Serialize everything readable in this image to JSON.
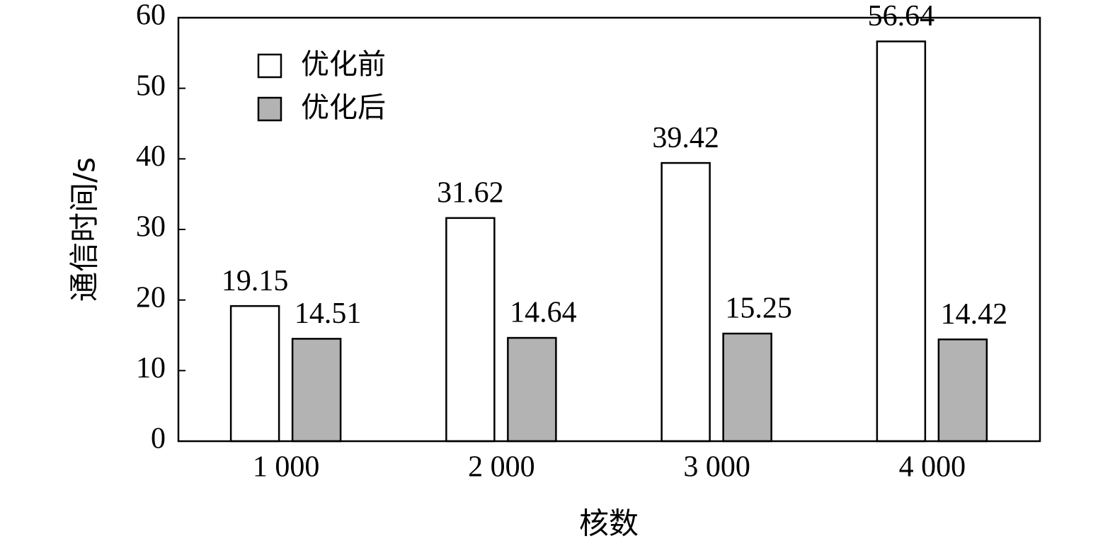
{
  "chart_data": {
    "type": "bar",
    "xlabel": "核数",
    "ylabel": "通信时间/s",
    "categories": [
      "1 000",
      "2 000",
      "3 000",
      "4 000"
    ],
    "series": [
      {
        "name": "优化前",
        "color": "#ffffff",
        "values": [
          19.15,
          31.62,
          39.42,
          56.64
        ]
      },
      {
        "name": "优化后",
        "color": "#b3b3b3",
        "values": [
          14.51,
          14.64,
          15.25,
          14.42
        ]
      }
    ],
    "ylim": [
      0,
      60
    ],
    "yticks": [
      0,
      10,
      20,
      30,
      40,
      50,
      60
    ],
    "grid": false,
    "legend": "upper left"
  }
}
